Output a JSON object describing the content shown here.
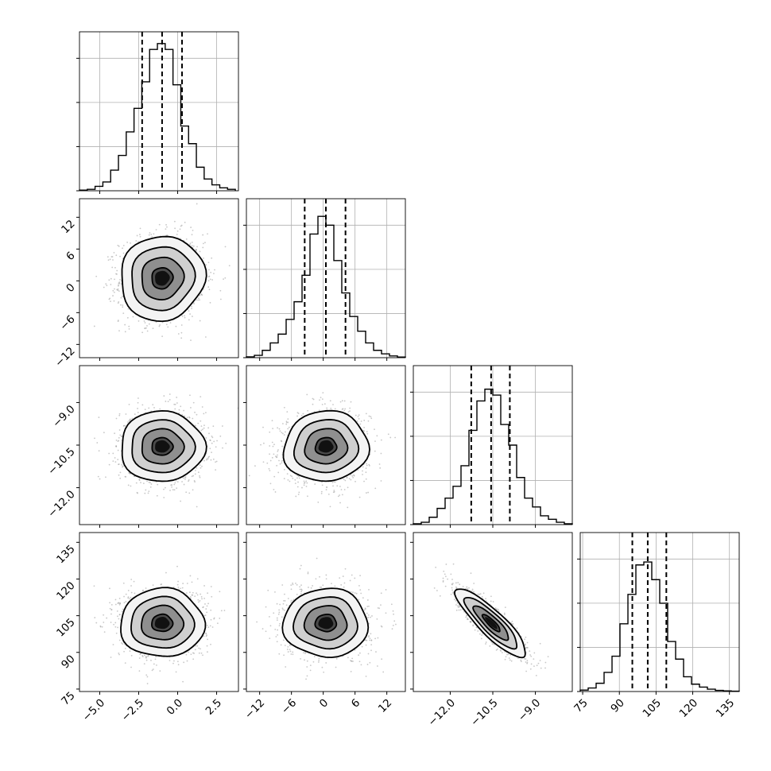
{
  "chart_data": {
    "type": "corner",
    "grid": true,
    "histogram_style": "step",
    "quantile_lines": "dashed",
    "variables": [
      {
        "range": [
          -6.3,
          3.9
        ],
        "ticks": [
          {
            "value": -5.0,
            "label": "−5.0"
          },
          {
            "value": -2.5,
            "label": "−2.5"
          },
          {
            "value": 0.0,
            "label": "0.0"
          },
          {
            "value": 2.5,
            "label": "2.5"
          }
        ],
        "quantiles": [
          -2.28,
          -1.0,
          0.28
        ],
        "hist": {
          "edges_start": -6.3,
          "bin_width": 0.5,
          "counts": [
            0.2,
            0.5,
            1.5,
            3,
            7,
            12,
            20,
            28,
            37,
            48,
            50,
            48,
            36,
            22,
            16,
            8,
            4,
            2,
            1,
            0.5
          ]
        }
      },
      {
        "range": [
          -14.5,
          15.5
        ],
        "ticks": [
          {
            "value": -12,
            "label": "−12"
          },
          {
            "value": -6,
            "label": "−6"
          },
          {
            "value": 0,
            "label": "0"
          },
          {
            "value": 6,
            "label": "6"
          },
          {
            "value": 12,
            "label": "12"
          }
        ],
        "quantiles": [
          -3.5,
          0.5,
          4.2
        ],
        "hist": {
          "edges_start": -14.5,
          "bin_width": 1.5,
          "counts": [
            0.3,
            0.8,
            2.5,
            5,
            8,
            13,
            19,
            28,
            42,
            48,
            45,
            33,
            22,
            14,
            9,
            5,
            2.5,
            1.3,
            0.6,
            0.2
          ]
        }
      },
      {
        "range": [
          -13.3,
          -7.7
        ],
        "ticks": [
          {
            "value": -12.0,
            "label": "−12.0"
          },
          {
            "value": -10.5,
            "label": "−10.5"
          },
          {
            "value": -9.0,
            "label": "−9.0"
          }
        ],
        "quantiles": [
          -11.26,
          -10.56,
          -9.9
        ],
        "hist": {
          "edges_start": -13.3,
          "bin_width": 0.28,
          "counts": [
            0.3,
            0.8,
            2.5,
            5.5,
            9,
            13,
            20,
            32,
            42,
            46,
            44,
            34,
            27,
            16,
            9,
            6,
            3,
            1.8,
            0.8,
            0.3
          ]
        }
      },
      {
        "range": [
          74,
          139
        ],
        "ticks": [
          {
            "value": 75,
            "label": "75"
          },
          {
            "value": 90,
            "label": "90"
          },
          {
            "value": 105,
            "label": "105"
          },
          {
            "value": 120,
            "label": "120"
          },
          {
            "value": 135,
            "label": "135"
          }
        ],
        "quantiles": [
          95.3,
          101.6,
          109.2
        ],
        "hist": {
          "edges_start": 74,
          "bin_width": 3.25,
          "counts": [
            0.5,
            1.2,
            2.8,
            6.5,
            12,
            23,
            33,
            43,
            44,
            38,
            30,
            17,
            11,
            5,
            2.5,
            1.5,
            0.8,
            0.4,
            0.2,
            0.1
          ]
        }
      }
    ],
    "hist_ymax": 54,
    "hist_yticks": [
      0,
      15,
      30,
      45
    ],
    "pairs": [
      {
        "row": 1,
        "col": 0,
        "mean": [
          -1.0,
          0.5
        ],
        "sd": [
          1.35,
          4.0
        ],
        "rho": 0.05
      },
      {
        "row": 2,
        "col": 0,
        "mean": [
          -1.0,
          -10.55
        ],
        "sd": [
          1.35,
          0.62
        ],
        "rho": 0.0
      },
      {
        "row": 2,
        "col": 1,
        "mean": [
          0.5,
          -10.55
        ],
        "sd": [
          4.0,
          0.62
        ],
        "rho": 0.05
      },
      {
        "row": 3,
        "col": 0,
        "mean": [
          -1.0,
          102.0
        ],
        "sd": [
          1.35,
          7.0
        ],
        "rho": 0.0
      },
      {
        "row": 3,
        "col": 1,
        "mean": [
          0.5,
          102.0
        ],
        "sd": [
          4.0,
          7.0
        ],
        "rho": 0.0
      },
      {
        "row": 3,
        "col": 2,
        "mean": [
          -10.55,
          102.0
        ],
        "sd": [
          0.62,
          7.0
        ],
        "rho": -0.87
      }
    ],
    "contour_levels_sigma": [
      0.5,
      1.0,
      1.5,
      2.0
    ]
  }
}
